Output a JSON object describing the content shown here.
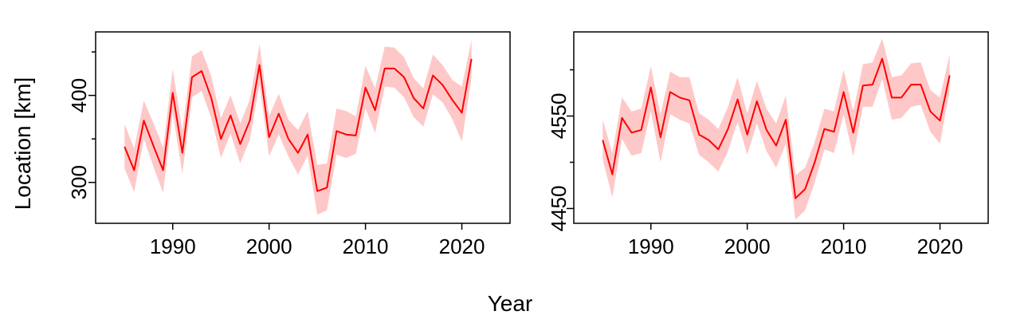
{
  "figure": {
    "xlabel": "Year",
    "ylabel": "Location [km]"
  },
  "chart_data": [
    {
      "type": "line",
      "title": "",
      "xlabel": "Year",
      "ylabel": "Location [km]",
      "xlim": [
        1982,
        2025
      ],
      "ylim": [
        253,
        473
      ],
      "xticks": [
        1990,
        2000,
        2010,
        2020
      ],
      "yticks": [
        300,
        400
      ],
      "yticks_minor": [
        350,
        450
      ],
      "grid": false,
      "legend": "none",
      "colors": {
        "line": "#ff0000",
        "band": "#ffc8c8"
      },
      "series": [
        {
          "x": [
            1985,
            1986,
            1987,
            1988,
            1989,
            1990,
            1991,
            1992,
            1993,
            1994,
            1995,
            1996,
            1997,
            1998,
            1999,
            2000,
            2001,
            2002,
            2003,
            2004,
            2005,
            2006,
            2007,
            2008,
            2009,
            2010,
            2011,
            2012,
            2013,
            2014,
            2015,
            2016,
            2017,
            2018,
            2019,
            2020,
            2021
          ],
          "y": [
            341,
            314,
            371,
            342,
            314,
            403,
            334,
            421,
            428,
            397,
            350,
            377,
            344,
            371,
            435,
            352,
            379,
            350,
            334,
            355,
            290,
            294,
            359,
            355,
            354,
            409,
            383,
            431,
            431,
            421,
            397,
            385,
            423,
            412,
            395,
            380,
            442
          ],
          "lower": [
            316,
            289,
            350,
            318,
            288,
            380,
            310,
            398,
            405,
            374,
            328,
            356,
            322,
            349,
            413,
            330,
            355,
            330,
            309,
            331,
            263,
            268,
            332,
            328,
            333,
            385,
            357,
            410,
            409,
            398,
            375,
            364,
            401,
            392,
            373,
            347,
            420
          ],
          "upper": [
            367,
            339,
            394,
            368,
            340,
            430,
            360,
            445,
            452,
            422,
            374,
            400,
            368,
            395,
            459,
            376,
            402,
            372,
            360,
            382,
            320,
            322,
            385,
            382,
            376,
            434,
            408,
            456,
            455,
            444,
            420,
            408,
            447,
            435,
            418,
            410,
            464
          ]
        }
      ]
    },
    {
      "type": "line",
      "title": "",
      "xlabel": "Year",
      "ylabel": "",
      "xlim": [
        1982,
        2025
      ],
      "ylim": [
        4434,
        4641
      ],
      "xticks": [
        1990,
        2000,
        2010,
        2020
      ],
      "yticks": [
        4450,
        4550
      ],
      "yticks_minor": [
        4500,
        4600
      ],
      "grid": false,
      "legend": "none",
      "colors": {
        "line": "#ff0000",
        "band": "#ffc8c8"
      },
      "series": [
        {
          "x": [
            1985,
            1986,
            1987,
            1988,
            1989,
            1990,
            1991,
            1992,
            1993,
            1994,
            1995,
            1996,
            1997,
            1998,
            1999,
            2000,
            2001,
            2002,
            2003,
            2004,
            2005,
            2006,
            2007,
            2008,
            2009,
            2010,
            2011,
            2012,
            2013,
            2014,
            2015,
            2016,
            2017,
            2018,
            2019,
            2020,
            2021
          ],
          "y": [
            4524,
            4487,
            4548,
            4532,
            4535,
            4581,
            4527,
            4576,
            4570,
            4567,
            4530,
            4524,
            4514,
            4536,
            4568,
            4530,
            4566,
            4535,
            4518,
            4546,
            4461,
            4471,
            4500,
            4536,
            4533,
            4576,
            4532,
            4583,
            4584,
            4612,
            4570,
            4570,
            4584,
            4584,
            4555,
            4545,
            4594
          ],
          "lower": [
            4503,
            4462,
            4525,
            4507,
            4510,
            4555,
            4500,
            4552,
            4546,
            4542,
            4508,
            4500,
            4490,
            4512,
            4544,
            4508,
            4542,
            4512,
            4494,
            4520,
            4438,
            4448,
            4478,
            4514,
            4510,
            4552,
            4506,
            4560,
            4560,
            4590,
            4546,
            4548,
            4560,
            4562,
            4533,
            4520,
            4578
          ],
          "upper": [
            4546,
            4510,
            4570,
            4555,
            4558,
            4604,
            4552,
            4598,
            4592,
            4592,
            4553,
            4546,
            4536,
            4560,
            4592,
            4553,
            4588,
            4558,
            4542,
            4572,
            4486,
            4494,
            4522,
            4558,
            4555,
            4600,
            4555,
            4606,
            4608,
            4634,
            4592,
            4594,
            4607,
            4608,
            4578,
            4570,
            4617
          ]
        }
      ]
    }
  ]
}
